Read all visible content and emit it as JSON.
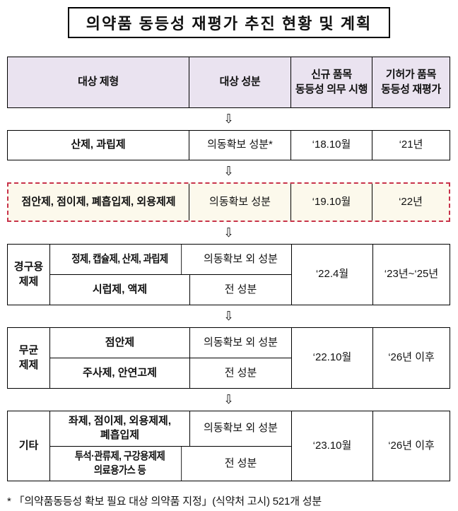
{
  "title": "의약품 동등성 재평가 추진 현황 및 계획",
  "arrow_glyph": "⇩",
  "header": {
    "target_dosage_form": "대상 제형",
    "target_ingredient": "대상 성분",
    "new_item_mandatory": "신규 품목\n동등성 의무 시행",
    "approved_item_reeval": "기허가 품목\n동등성 재평가"
  },
  "rows": [
    {
      "type": "simple",
      "dosage": "산제, 과립제",
      "ingredient": "의동확보 성분*",
      "start": "‘18.10월",
      "reeval": "‘21년"
    },
    {
      "type": "highlight",
      "dosage": "점안제, 점이제, 폐흡입제, 외용제제",
      "ingredient": "의동확보 성분",
      "start": "‘19.10월",
      "reeval": "‘22년"
    },
    {
      "type": "group",
      "label": "경구용\n제제",
      "sub": [
        {
          "dosage": "정제, 캡슐제, 산제, 과립제",
          "ingredient": "의동확보 외 성분"
        },
        {
          "dosage": "시럽제, 액제",
          "ingredient": "전 성분"
        }
      ],
      "start": "‘22.4월",
      "reeval": "‘23년~‘25년"
    },
    {
      "type": "group",
      "label": "무균\n제제",
      "sub": [
        {
          "dosage": "점안제",
          "ingredient": "의동확보 외 성분"
        },
        {
          "dosage": "주사제, 안연고제",
          "ingredient": "전 성분"
        }
      ],
      "start": "‘22.10월",
      "reeval": "‘26년 이후"
    },
    {
      "type": "group",
      "label": "기타",
      "sub": [
        {
          "dosage": "좌제, 점이제, 외용제제,\n폐흡입제",
          "ingredient": "의동확보 외 성분"
        },
        {
          "dosage": "투석·관류제, 구강용제제\n의료용가스 등",
          "ingredient": "전 성분"
        }
      ],
      "start": "‘23.10월",
      "reeval": "‘26년 이후"
    }
  ],
  "footnote": "* 「의약품동등성 확보 필요 대상 의약품 지정」(식약처 고시) 521개 성분",
  "colors": {
    "header_bg": "#EAE3F0",
    "highlight_bg": "#FCF9EC",
    "highlight_border": "#C8334B",
    "line": "#000000"
  }
}
